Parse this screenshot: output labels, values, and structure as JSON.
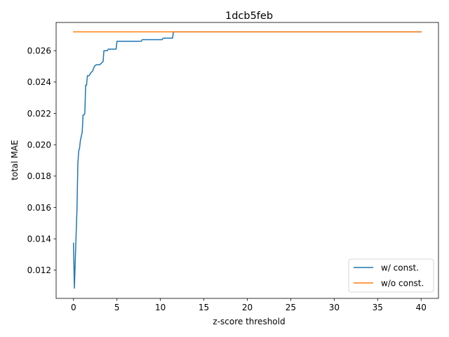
{
  "chart_data": {
    "type": "line",
    "title": "1dcb5feb",
    "xlabel": "z-score threshold",
    "ylabel": "total MAE",
    "xlim": [
      -2,
      42
    ],
    "ylim": [
      0.0102,
      0.0278
    ],
    "xticks": [
      0,
      5,
      10,
      15,
      20,
      25,
      30,
      35,
      40
    ],
    "xtick_labels": [
      "0",
      "5",
      "10",
      "15",
      "20",
      "25",
      "30",
      "35",
      "40"
    ],
    "yticks": [
      0.012,
      0.014,
      0.016,
      0.018,
      0.02,
      0.022,
      0.024,
      0.026
    ],
    "ytick_labels": [
      "0.012",
      "0.014",
      "0.016",
      "0.018",
      "0.020",
      "0.022",
      "0.024",
      "0.026"
    ],
    "grid": false,
    "legend_position": "lower-right",
    "series": [
      {
        "name": "w/ const.",
        "color": "#1f77b4",
        "x": [
          0.0,
          0.1,
          0.2,
          0.3,
          0.4,
          0.5,
          0.6,
          0.7,
          0.8,
          1.0,
          1.1,
          1.2,
          1.3,
          1.4,
          1.5,
          1.6,
          1.7,
          1.8,
          2.0,
          2.2,
          2.4,
          2.6,
          3.0,
          3.4,
          3.5,
          3.9,
          4.0,
          4.9,
          5.0,
          7.8,
          7.9,
          10.2,
          10.3,
          11.4,
          11.5,
          40.0
        ],
        "y": [
          0.01372,
          0.01085,
          0.01255,
          0.01425,
          0.0159,
          0.0188,
          0.0196,
          0.0198,
          0.0203,
          0.0208,
          0.0219,
          0.0219,
          0.022,
          0.0238,
          0.0238,
          0.0244,
          0.0244,
          0.0244,
          0.0246,
          0.0247,
          0.025,
          0.0251,
          0.0251,
          0.0253,
          0.026,
          0.026,
          0.0261,
          0.0261,
          0.0266,
          0.0266,
          0.0267,
          0.0267,
          0.0268,
          0.0268,
          0.0272,
          0.0272
        ]
      },
      {
        "name": "w/o const.",
        "color": "#ff7f0e",
        "x": [
          0,
          40
        ],
        "y": [
          0.0272,
          0.0272
        ]
      }
    ]
  }
}
